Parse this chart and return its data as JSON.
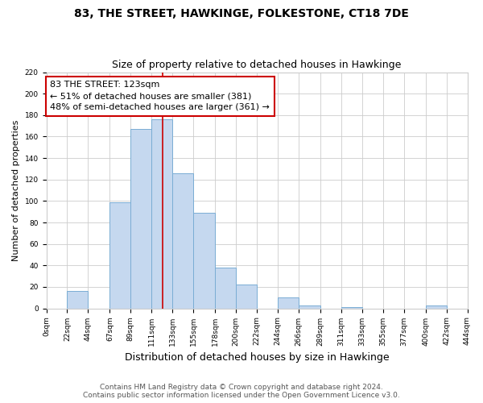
{
  "title": "83, THE STREET, HAWKINGE, FOLKESTONE, CT18 7DE",
  "subtitle": "Size of property relative to detached houses in Hawkinge",
  "xlabel": "Distribution of detached houses by size in Hawkinge",
  "ylabel": "Number of detached properties",
  "bar_left_edges": [
    0,
    22,
    44,
    67,
    89,
    111,
    133,
    155,
    178,
    200,
    222,
    244,
    266,
    289,
    311,
    333,
    355,
    377,
    400,
    422
  ],
  "bar_heights": [
    0,
    16,
    0,
    99,
    167,
    176,
    126,
    89,
    38,
    22,
    0,
    10,
    3,
    0,
    1,
    0,
    0,
    0,
    3,
    0
  ],
  "bar_widths": [
    22,
    22,
    23,
    22,
    22,
    22,
    22,
    23,
    22,
    22,
    22,
    22,
    23,
    22,
    22,
    22,
    22,
    23,
    22,
    22
  ],
  "tick_labels": [
    "0sqm",
    "22sqm",
    "44sqm",
    "67sqm",
    "89sqm",
    "111sqm",
    "133sqm",
    "155sqm",
    "178sqm",
    "200sqm",
    "222sqm",
    "244sqm",
    "266sqm",
    "289sqm",
    "311sqm",
    "333sqm",
    "355sqm",
    "377sqm",
    "400sqm",
    "422sqm",
    "444sqm"
  ],
  "tick_positions": [
    0,
    22,
    44,
    67,
    89,
    111,
    133,
    155,
    178,
    200,
    222,
    244,
    266,
    289,
    311,
    333,
    355,
    377,
    400,
    422,
    444
  ],
  "bar_color": "#c5d8ef",
  "bar_edgecolor": "#7aadd4",
  "vline_x": 123,
  "vline_color": "#cc0000",
  "annotation_box_text": "83 THE STREET: 123sqm\n← 51% of detached houses are smaller (381)\n48% of semi-detached houses are larger (361) →",
  "ylim": [
    0,
    220
  ],
  "xlim": [
    0,
    444
  ],
  "yticks": [
    0,
    20,
    40,
    60,
    80,
    100,
    120,
    140,
    160,
    180,
    200,
    220
  ],
  "footer_line1": "Contains HM Land Registry data © Crown copyright and database right 2024.",
  "footer_line2": "Contains public sector information licensed under the Open Government Licence v3.0.",
  "title_fontsize": 10,
  "subtitle_fontsize": 9,
  "xlabel_fontsize": 9,
  "ylabel_fontsize": 8,
  "tick_fontsize": 6.5,
  "footer_fontsize": 6.5,
  "annotation_fontsize": 8,
  "grid_color": "#cccccc",
  "bg_color": "#ffffff"
}
